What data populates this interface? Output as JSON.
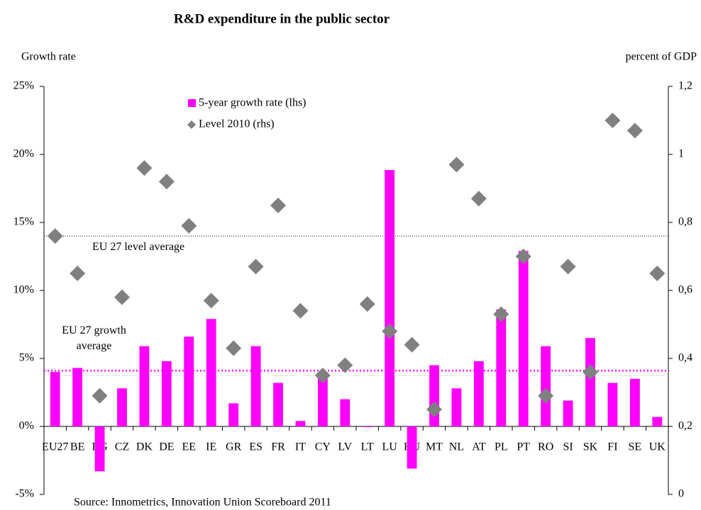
{
  "chart_data": {
    "type": "bar_scatter",
    "title": "R&D expenditure in the public sector",
    "y_label": "Growth rate",
    "y2_label": "percent of GDP",
    "source": "Source: Innometrics, Innovation Union Scoreboard 2011",
    "categories": [
      "EU27",
      "BE",
      "BG",
      "CZ",
      "DK",
      "DE",
      "EE",
      "IE",
      "GR",
      "ES",
      "FR",
      "IT",
      "CY",
      "LV",
      "LT",
      "LU",
      "HU",
      "MT",
      "NL",
      "AT",
      "PL",
      "PT",
      "RO",
      "SI",
      "SK",
      "FI",
      "SE",
      "UK"
    ],
    "series": [
      {
        "name": "5-year growth rate (lhs)",
        "type": "bar",
        "color": "#ff00ff",
        "values": [
          4.0,
          4.3,
          -3.3,
          2.8,
          5.9,
          4.8,
          6.6,
          7.9,
          1.7,
          5.9,
          3.2,
          0.4,
          3.6,
          2.0,
          -0.05,
          18.85,
          -3.1,
          4.5,
          2.8,
          4.8,
          8.6,
          12.9,
          5.9,
          1.9,
          6.5,
          3.2,
          3.5,
          0.7
        ]
      },
      {
        "name": "Level 2010 (rhs)",
        "type": "scatter",
        "axis": "y2",
        "color": "#808080",
        "values": [
          0.76,
          0.65,
          0.29,
          0.58,
          0.96,
          0.92,
          0.79,
          0.57,
          0.43,
          0.67,
          0.85,
          0.54,
          0.35,
          0.38,
          0.56,
          0.48,
          0.44,
          0.25,
          0.97,
          0.87,
          0.53,
          0.7,
          0.29,
          0.67,
          0.36,
          1.1,
          1.07,
          0.65
        ]
      }
    ],
    "reference_lines": [
      {
        "label": "EU 27 growth average",
        "value": 4.1,
        "color": "#ff00ff"
      },
      {
        "label": "EU 27 level average",
        "value": 0.76,
        "axis": "y2",
        "color": "#000000"
      }
    ],
    "ylim": [
      -5,
      25
    ],
    "yticks": [
      {
        "value": -5,
        "label": "-5%"
      },
      {
        "value": 0,
        "label": "0%"
      },
      {
        "value": 5,
        "label": "5%"
      },
      {
        "value": 10,
        "label": "10%"
      },
      {
        "value": 15,
        "label": "15%"
      },
      {
        "value": 20,
        "label": "20%"
      },
      {
        "value": 25,
        "label": "25%"
      }
    ],
    "y2lim": [
      0,
      1.2
    ],
    "y2ticks": [
      0,
      {
        "value": 0.2,
        "label": "0,2"
      },
      {
        "value": 0.4,
        "label": "0,4"
      },
      {
        "value": 0.6,
        "label": "0,6"
      },
      {
        "value": 0.8,
        "label": "0,8"
      },
      1,
      {
        "value": 1.2,
        "label": "1,2"
      }
    ]
  }
}
